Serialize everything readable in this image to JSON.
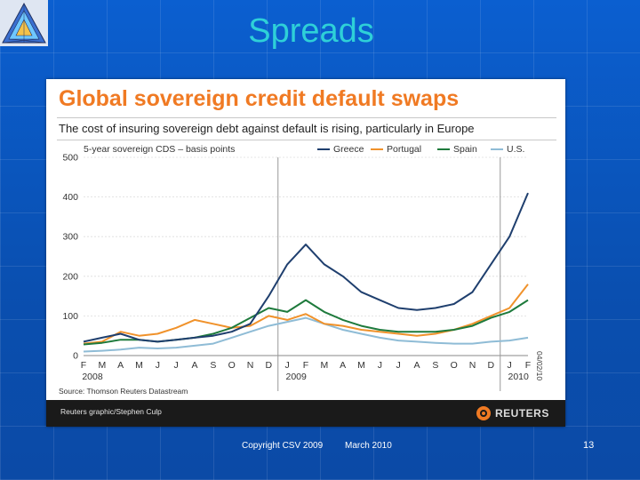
{
  "slide": {
    "title": "Spreads",
    "copyright": "Copyright CSV 2009",
    "date": "March 2010",
    "page_number": "13"
  },
  "figure": {
    "title": "Global sovereign credit default swaps",
    "subtitle": "The cost of insuring sovereign debt against default is rising, particularly in Europe",
    "source": "Source: Thomson Reuters Datastream",
    "credit": "Reuters graphic/Stephen Culp",
    "brand": "REUTERS",
    "stamp_date": "04/02/10"
  },
  "chart_data": {
    "type": "line",
    "title": "Global sovereign credit default swaps",
    "ylabel": "5-year sovereign CDS – basis points",
    "ylim": [
      0,
      500
    ],
    "yticks": [
      "0",
      "100",
      "200",
      "300",
      "400",
      "500"
    ],
    "month_labels": [
      "F",
      "M",
      "A",
      "M",
      "J",
      "J",
      "A",
      "S",
      "O",
      "N",
      "D",
      "J",
      "F",
      "M",
      "A",
      "M",
      "J",
      "J",
      "A",
      "S",
      "O",
      "N",
      "D",
      "J",
      "F"
    ],
    "year_labels": [
      {
        "label": "2008",
        "month_index": 0
      },
      {
        "label": "2009",
        "month_index": 11
      },
      {
        "label": "2010",
        "month_index": 23
      }
    ],
    "year_markers": [
      10.5,
      22.5
    ],
    "colors": {
      "Greece": "#1f3f6e",
      "Portugal": "#f0922b",
      "Spain": "#1e7a3c",
      "U.S.": "#8fbcd6"
    },
    "series": [
      {
        "name": "Greece",
        "values": [
          35,
          45,
          55,
          40,
          35,
          40,
          45,
          50,
          60,
          80,
          150,
          230,
          280,
          230,
          200,
          160,
          140,
          120,
          115,
          120,
          130,
          160,
          230,
          300,
          410
        ]
      },
      {
        "name": "Portugal",
        "values": [
          30,
          35,
          60,
          50,
          55,
          70,
          90,
          80,
          70,
          75,
          100,
          90,
          105,
          80,
          75,
          65,
          60,
          55,
          50,
          55,
          65,
          80,
          100,
          120,
          180
        ]
      },
      {
        "name": "Spain",
        "values": [
          28,
          32,
          40,
          40,
          35,
          40,
          45,
          55,
          70,
          95,
          120,
          110,
          140,
          110,
          90,
          75,
          65,
          60,
          60,
          60,
          65,
          75,
          95,
          110,
          140
        ]
      },
      {
        "name": "U.S.",
        "values": [
          10,
          12,
          15,
          20,
          18,
          20,
          25,
          30,
          45,
          60,
          75,
          85,
          95,
          80,
          65,
          55,
          45,
          38,
          35,
          32,
          30,
          30,
          35,
          38,
          45
        ]
      }
    ]
  }
}
